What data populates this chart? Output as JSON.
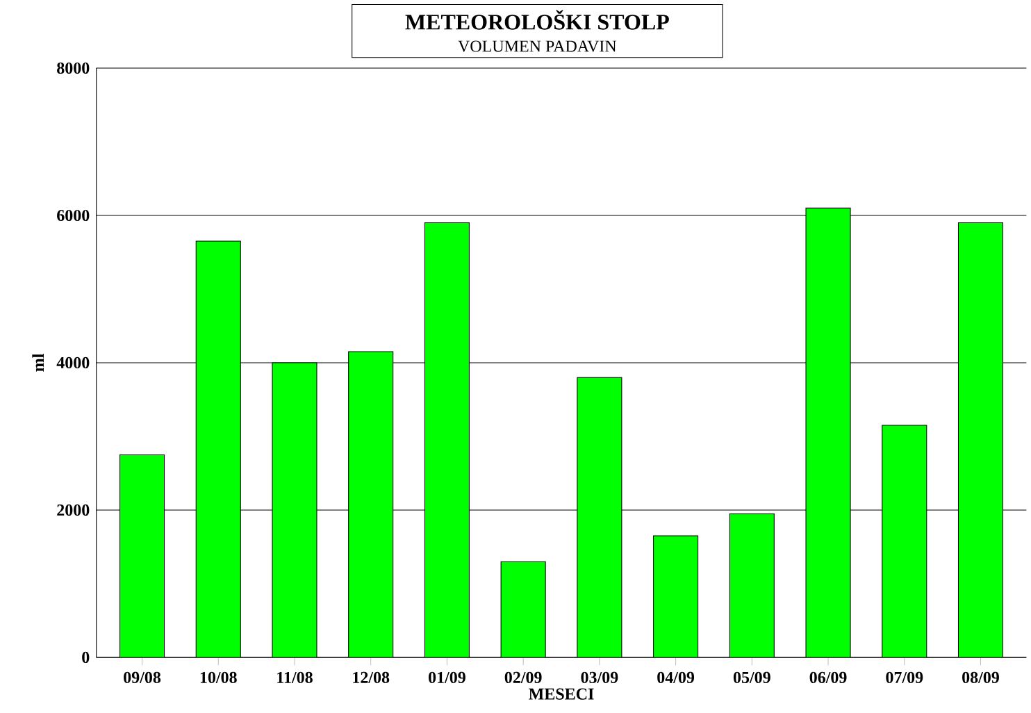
{
  "chart_data": {
    "type": "bar",
    "title": "METEOROLOŠKI STOLP",
    "subtitle": "VOLUMEN PADAVIN",
    "xlabel": "MESECI",
    "ylabel": "ml",
    "categories": [
      "09/08",
      "10/08",
      "11/08",
      "12/08",
      "01/09",
      "02/09",
      "03/09",
      "04/09",
      "05/09",
      "06/09",
      "07/09",
      "08/09"
    ],
    "values": [
      2750,
      5650,
      4000,
      4150,
      5900,
      1300,
      3800,
      1650,
      1950,
      6100,
      3150,
      5900
    ],
    "color": "#00ff00",
    "ylim": [
      0,
      8000
    ],
    "yticks": [
      0,
      2000,
      4000,
      6000,
      8000
    ],
    "grid": "y"
  }
}
